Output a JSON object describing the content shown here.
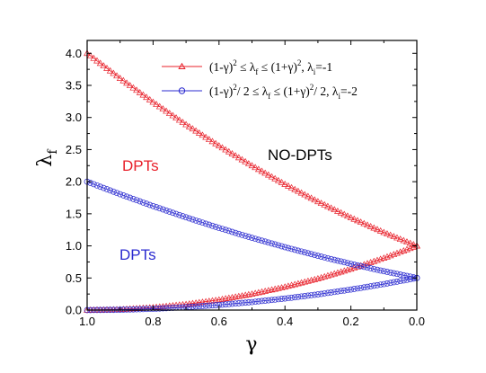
{
  "chart_data": {
    "type": "scatter",
    "title": "",
    "xlabel": "γ",
    "ylabel_main": "λ",
    "ylabel_sub": "f",
    "xlim": [
      1.0,
      0.0
    ],
    "ylim": [
      0.0,
      4.2
    ],
    "x_reversed": true,
    "xticks": [
      "1.0",
      "0.8",
      "0.6",
      "0.4",
      "0.2",
      "0.0"
    ],
    "yticks": [
      "0.0",
      "0.5",
      "1.0",
      "1.5",
      "2.0",
      "2.5",
      "3.0",
      "3.5",
      "4.0"
    ],
    "series": [
      {
        "key": "s1",
        "color": "#e8202a",
        "marker": "triangle",
        "x": [
          1.0,
          0.9,
          0.8,
          0.7,
          0.6,
          0.5,
          0.4,
          0.3,
          0.2,
          0.1,
          0.0
        ],
        "upper": [
          4.0,
          3.61,
          3.24,
          2.89,
          2.56,
          2.25,
          1.96,
          1.69,
          1.44,
          1.21,
          1.0
        ],
        "lower": [
          0.0,
          0.01,
          0.04,
          0.09,
          0.16,
          0.25,
          0.36,
          0.49,
          0.64,
          0.81,
          1.0
        ]
      },
      {
        "key": "s2",
        "color": "#2b2bd0",
        "marker": "circle",
        "x": [
          1.0,
          0.9,
          0.8,
          0.7,
          0.6,
          0.5,
          0.4,
          0.3,
          0.2,
          0.1,
          0.0
        ],
        "upper": [
          2.0,
          1.805,
          1.62,
          1.445,
          1.28,
          1.125,
          0.98,
          0.845,
          0.72,
          0.605,
          0.5
        ],
        "lower": [
          0.0,
          0.005,
          0.02,
          0.045,
          0.08,
          0.125,
          0.18,
          0.245,
          0.32,
          0.405,
          0.5
        ]
      }
    ],
    "legend": {
      "placement": "top-right",
      "entries": [
        {
          "series": "s1",
          "parts": [
            "(1-γ)",
            "2",
            " ≤ λ",
            "f",
            " ≤ (1+γ)",
            "2",
            ", λ",
            "i",
            "=-1"
          ]
        },
        {
          "series": "s2",
          "parts": [
            "(1-γ)",
            "2",
            "/ 2 ≤ λ",
            "f",
            " ≤ (1+γ)",
            "2",
            "/ 2,  λ",
            "i",
            "=-2"
          ]
        }
      ]
    },
    "annotations": [
      {
        "text": "DPTs",
        "color": "#e8202a"
      },
      {
        "text": "NO-DPTs",
        "color": "#000000"
      },
      {
        "text": "DPTs",
        "color": "#2b2bd0"
      }
    ]
  }
}
